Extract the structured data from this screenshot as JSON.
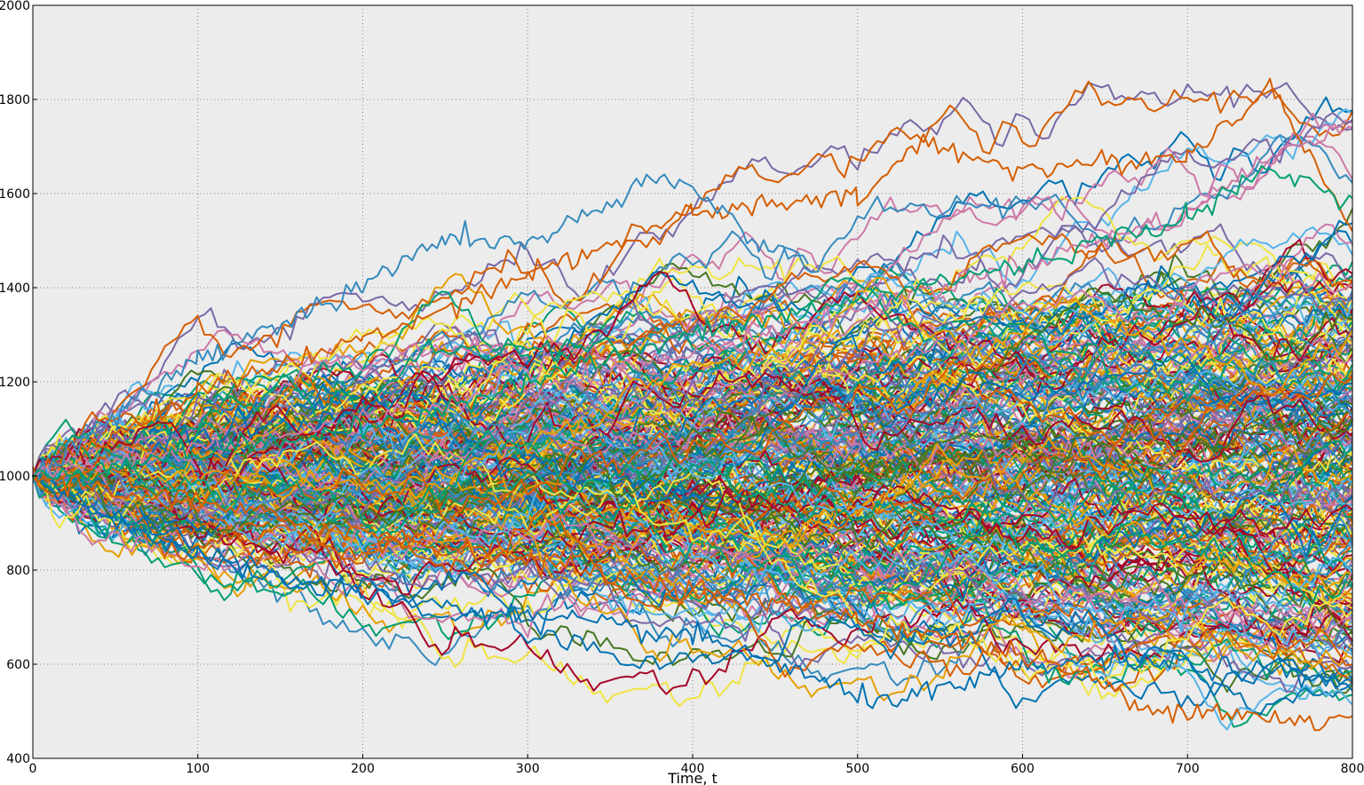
{
  "chart_data": {
    "type": "line",
    "title": "",
    "xlabel": "Time, t",
    "ylabel": "",
    "xlim": [
      0,
      800
    ],
    "ylim": [
      400,
      2000
    ],
    "xticks": [
      0,
      100,
      200,
      300,
      400,
      500,
      600,
      700,
      800
    ],
    "yticks": [
      400,
      600,
      800,
      1000,
      1200,
      1400,
      1600,
      1800,
      2000
    ],
    "grid": true,
    "background": "#ececec",
    "palette": [
      "#d55e00",
      "#0072b2",
      "#009e73",
      "#f0e442",
      "#cc79a7",
      "#56b4e9",
      "#a60628",
      "#348abd",
      "#7a68a6",
      "#467821",
      "#e69f00"
    ],
    "simulation": {
      "start_value": 1000,
      "steps": 800,
      "n_paths": 300,
      "description_of_spread": "paths start at 1000 at t=0 and diverge; by t=800 they range from about 470 to about 1830"
    },
    "highlighted_paths": [
      {
        "color": "#d55e00",
        "x": [
          0,
          100,
          200,
          300,
          400,
          500,
          540,
          600,
          700,
          750,
          800
        ],
        "y": [
          1000,
          1180,
          1290,
          1430,
          1560,
          1590,
          1710,
          1650,
          1680,
          1830,
          1520
        ]
      },
      {
        "color": "#348abd",
        "x": [
          0,
          100,
          200,
          250,
          300,
          380,
          400,
          440,
          470
        ],
        "y": [
          1000,
          1250,
          1400,
          1510,
          1490,
          1630,
          1610,
          1500,
          1450
        ]
      },
      {
        "color": "#0072b2",
        "x": [
          0,
          100,
          200,
          300,
          400,
          450,
          480,
          500,
          550,
          600,
          650,
          700,
          800
        ],
        "y": [
          1000,
          820,
          750,
          700,
          660,
          600,
          560,
          525,
          540,
          590,
          610,
          600,
          560
        ]
      },
      {
        "color": "#d55e00",
        "x": [
          0,
          200,
          400,
          500,
          600,
          650,
          670,
          700,
          750,
          780,
          800
        ],
        "y": [
          1000,
          880,
          760,
          700,
          620,
          560,
          500,
          510,
          490,
          470,
          490
        ]
      },
      {
        "color": "#cc79a7",
        "x": [
          0,
          200,
          400,
          600,
          700,
          750,
          800
        ],
        "y": [
          1000,
          1120,
          1260,
          1450,
          1560,
          1680,
          1740
        ]
      },
      {
        "color": "#009e73",
        "x": [
          0,
          200,
          400,
          600,
          700,
          750,
          800
        ],
        "y": [
          1000,
          1100,
          1300,
          1450,
          1550,
          1650,
          1590
        ]
      }
    ]
  }
}
